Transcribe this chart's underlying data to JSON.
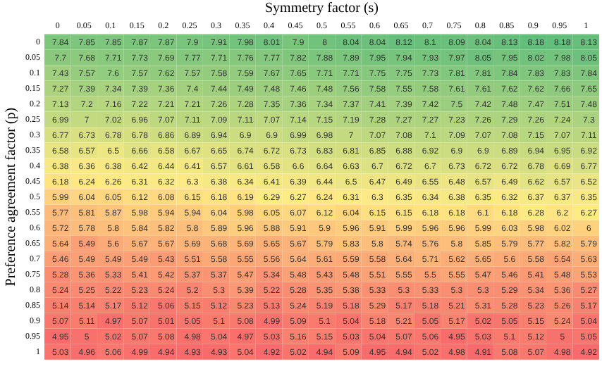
{
  "chart_data": {
    "type": "heatmap",
    "xlabel": "Symmetry factor (s)",
    "ylabel": "Preference agreement factor (p)",
    "data_labels": true,
    "grid": false,
    "legend": false,
    "colors": [
      "#f8696b",
      "#ffeb84",
      "#63be7b"
    ],
    "categories": [
      "0",
      "0.05",
      "0.1",
      "0.15",
      "0.2",
      "0.25",
      "0.3",
      "0.35",
      "0.4",
      "0.45",
      "0.5",
      "0.55",
      "0.6",
      "0.65",
      "0.7",
      "0.75",
      "0.8",
      "0.85",
      "0.9",
      "0.95",
      "1"
    ],
    "y_categories": [
      "0",
      "0.05",
      "0.1",
      "0.15",
      "0.2",
      "0.25",
      "0.3",
      "0.35",
      "0.4",
      "0.45",
      "0.5",
      "0.55",
      "0.6",
      "0.65",
      "0.7",
      "0.75",
      "0.8",
      "0.85",
      "0.9",
      "0.95",
      "1"
    ],
    "cells": [
      [
        7.84,
        7.85,
        7.85,
        7.87,
        7.87,
        7.9,
        7.91,
        7.98,
        8.01,
        7.9,
        8,
        8.04,
        8.04,
        8.12,
        8.1,
        8.09,
        8.04,
        8.13,
        8.18,
        8.18,
        8.13
      ],
      [
        7.7,
        7.68,
        7.71,
        7.73,
        7.69,
        7.77,
        7.71,
        7.76,
        7.77,
        7.82,
        7.88,
        7.89,
        7.95,
        7.94,
        7.93,
        7.97,
        8.05,
        7.95,
        8.02,
        7.98,
        8.05
      ],
      [
        7.43,
        7.57,
        7.6,
        7.57,
        7.62,
        7.57,
        7.58,
        7.59,
        7.67,
        7.65,
        7.71,
        7.71,
        7.75,
        7.75,
        7.73,
        7.81,
        7.81,
        7.84,
        7.83,
        7.83,
        7.84
      ],
      [
        7.27,
        7.39,
        7.34,
        7.39,
        7.36,
        7.4,
        7.44,
        7.49,
        7.48,
        7.46,
        7.48,
        7.56,
        7.58,
        7.55,
        7.58,
        7.61,
        7.61,
        7.62,
        7.62,
        7.66,
        7.65
      ],
      [
        7.13,
        7.2,
        7.16,
        7.22,
        7.21,
        7.21,
        7.26,
        7.28,
        7.35,
        7.36,
        7.34,
        7.37,
        7.41,
        7.39,
        7.42,
        7.5,
        7.42,
        7.48,
        7.47,
        7.51,
        7.48
      ],
      [
        6.99,
        7,
        7.02,
        6.96,
        7.07,
        7.11,
        7.09,
        7.11,
        7.07,
        7.14,
        7.15,
        7.19,
        7.28,
        7.27,
        7.27,
        7.23,
        7.26,
        7.29,
        7.26,
        7.24,
        7.3
      ],
      [
        6.77,
        6.73,
        6.78,
        6.78,
        6.86,
        6.89,
        6.94,
        6.9,
        6.9,
        6.99,
        6.98,
        7,
        7.07,
        7.08,
        7.1,
        7.09,
        7.07,
        7.08,
        7.15,
        7.07,
        7.11
      ],
      [
        6.58,
        6.57,
        6.5,
        6.66,
        6.58,
        6.67,
        6.65,
        6.74,
        6.72,
        6.73,
        6.83,
        6.81,
        6.85,
        6.88,
        6.92,
        6.9,
        6.9,
        6.89,
        6.94,
        6.95,
        6.92
      ],
      [
        6.38,
        6.36,
        6.38,
        6.42,
        6.44,
        6.41,
        6.57,
        6.61,
        6.58,
        6.6,
        6.64,
        6.63,
        6.7,
        6.72,
        6.7,
        6.73,
        6.72,
        6.72,
        6.78,
        6.69,
        6.77
      ],
      [
        6.18,
        6.24,
        6.26,
        6.31,
        6.32,
        6.3,
        6.38,
        6.34,
        6.41,
        6.39,
        6.44,
        6.5,
        6.47,
        6.49,
        6.55,
        6.48,
        6.57,
        6.49,
        6.62,
        6.57,
        6.52
      ],
      [
        5.99,
        6.04,
        6.05,
        6.12,
        6.08,
        6.15,
        6.18,
        6.19,
        6.29,
        6.27,
        6.24,
        6.31,
        6.3,
        6.35,
        6.34,
        6.38,
        6.35,
        6.32,
        6.37,
        6.37,
        6.35
      ],
      [
        5.77,
        5.81,
        5.87,
        5.98,
        5.94,
        5.94,
        6.04,
        5.98,
        6.05,
        6.07,
        6.12,
        6.04,
        6.15,
        6.15,
        6.18,
        6.18,
        6.1,
        6.18,
        6.28,
        6.2,
        6.27
      ],
      [
        5.72,
        5.78,
        5.8,
        5.84,
        5.82,
        5.8,
        5.89,
        5.96,
        5.88,
        5.91,
        5.9,
        5.96,
        5.91,
        5.99,
        5.96,
        5.96,
        5.99,
        6.03,
        5.98,
        6.02,
        6
      ],
      [
        5.64,
        5.49,
        5.6,
        5.67,
        5.67,
        5.69,
        5.68,
        5.69,
        5.65,
        5.67,
        5.79,
        5.83,
        5.8,
        5.74,
        5.76,
        5.8,
        5.85,
        5.79,
        5.77,
        5.82,
        5.79
      ],
      [
        5.46,
        5.49,
        5.49,
        5.49,
        5.43,
        5.51,
        5.58,
        5.55,
        5.56,
        5.64,
        5.61,
        5.59,
        5.58,
        5.64,
        5.71,
        5.62,
        5.65,
        5.6,
        5.58,
        5.54,
        5.63
      ],
      [
        5.28,
        5.36,
        5.33,
        5.41,
        5.42,
        5.37,
        5.37,
        5.47,
        5.34,
        5.48,
        5.43,
        5.48,
        5.51,
        5.55,
        5.5,
        5.55,
        5.47,
        5.46,
        5.41,
        5.48,
        5.53
      ],
      [
        5.24,
        5.25,
        5.22,
        5.23,
        5.24,
        5.2,
        5.3,
        5.39,
        5.22,
        5.28,
        5.35,
        5.38,
        5.33,
        5.3,
        5.33,
        5.3,
        5.3,
        5.29,
        5.34,
        5.36,
        5.27
      ],
      [
        5.14,
        5.14,
        5.17,
        5.12,
        5.06,
        5.15,
        5.12,
        5.23,
        5.13,
        5.24,
        5.19,
        5.18,
        5.29,
        5.17,
        5.18,
        5.21,
        5.31,
        5.28,
        5.23,
        5.26,
        5.17
      ],
      [
        5.07,
        5.11,
        4.97,
        5.07,
        5.01,
        5.05,
        5.1,
        5.08,
        4.99,
        5.09,
        5.1,
        5.04,
        5.18,
        5.21,
        5.05,
        5.17,
        5.02,
        5.05,
        5.15,
        5.24,
        5.04
      ],
      [
        4.95,
        5,
        5.02,
        5.07,
        5.08,
        4.98,
        5.04,
        4.97,
        5.03,
        5.16,
        5.15,
        5.03,
        5.04,
        5.07,
        5.06,
        4.95,
        5.03,
        5.1,
        5.12,
        5,
        5.05
      ],
      [
        5.03,
        4.96,
        5.06,
        4.99,
        4.94,
        4.93,
        4.93,
        5.04,
        4.92,
        5.02,
        4.94,
        5.09,
        4.95,
        4.94,
        5.02,
        4.98,
        4.91,
        5.08,
        5.07,
        4.98,
        4.92
      ]
    ]
  }
}
